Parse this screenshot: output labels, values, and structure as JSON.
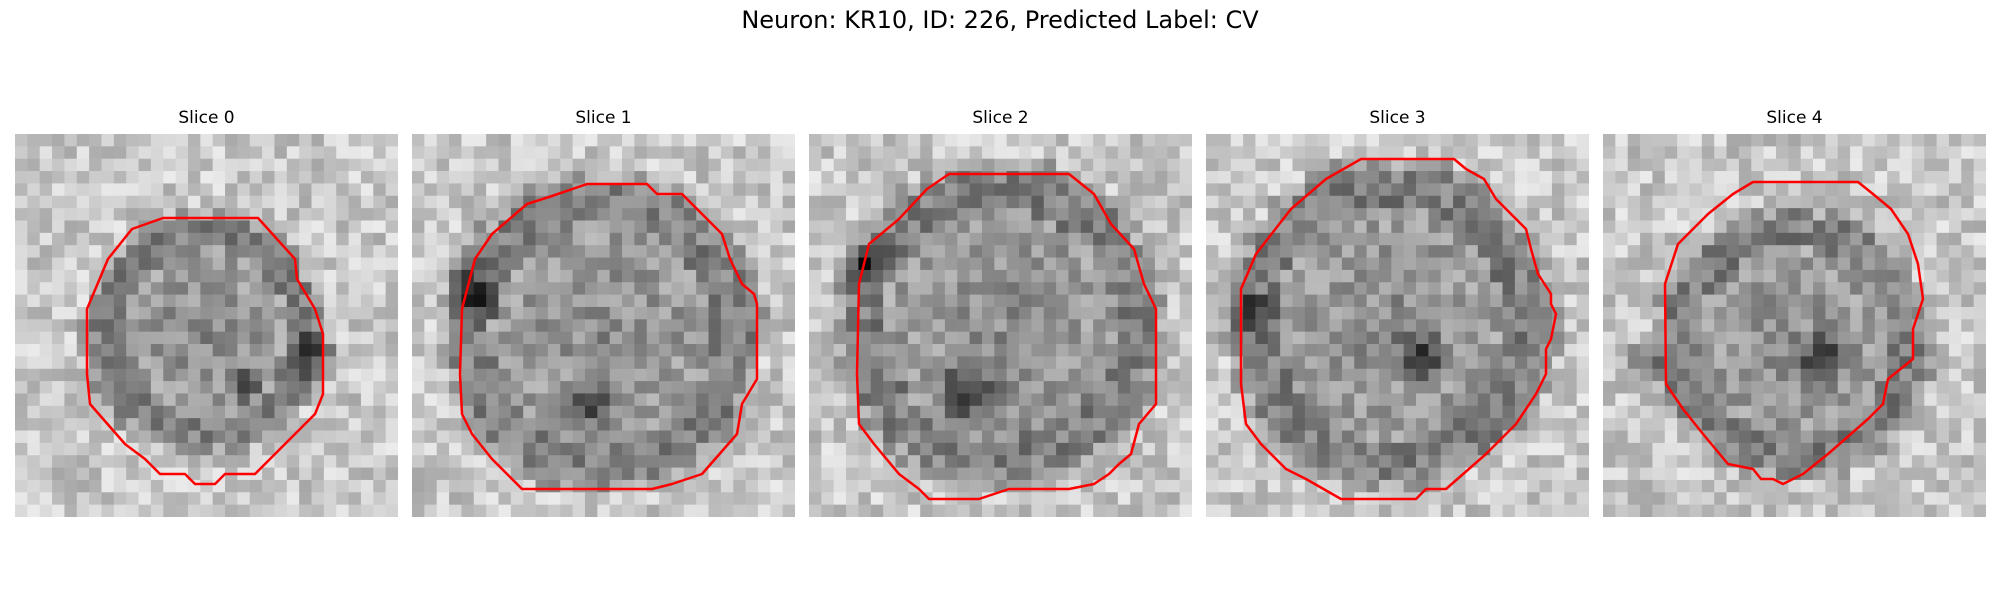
{
  "figure": {
    "title": "Neuron: KR10, ID: 226, Predicted Label: CV"
  },
  "panels": [
    {
      "title": "Slice 0"
    },
    {
      "title": "Slice 1"
    },
    {
      "title": "Slice 2"
    },
    {
      "title": "Slice 3"
    },
    {
      "title": "Slice 4"
    }
  ],
  "colors": {
    "contour": "#ff0000",
    "colormap": "gray"
  }
}
